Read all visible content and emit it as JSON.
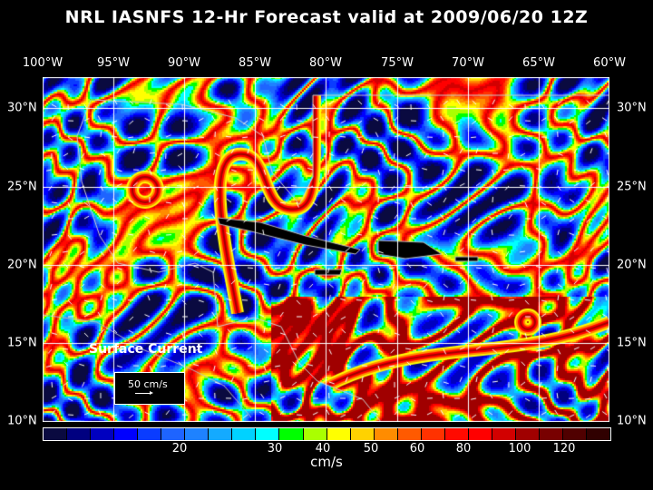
{
  "title": "NRL IASNFS  12-Hr Forecast valid at 2009/06/20 12Z",
  "lon_labels": [
    "100°W",
    "95°W",
    "90°W",
    "85°W",
    "80°W",
    "75°W",
    "70°W",
    "65°W",
    "60°W"
  ],
  "lat_labels": [
    "30°N",
    "25°N",
    "20°N",
    "15°N",
    "10°N"
  ],
  "legend": {
    "title": "Surface Current",
    "reference": "50 cm/s"
  },
  "colorbar": {
    "units": "cm/s",
    "ticks": [
      "20",
      "30",
      "40",
      "50",
      "60",
      "80",
      "100",
      "120"
    ],
    "colors": [
      "#0a0a40",
      "#000080",
      "#0000c0",
      "#0000ff",
      "#0a3cff",
      "#1e64ff",
      "#1e82ff",
      "#14aaff",
      "#00d2ff",
      "#00ffff",
      "#00ff00",
      "#aaff00",
      "#ffff00",
      "#ffd200",
      "#ff8c00",
      "#ff5a00",
      "#ff3200",
      "#ff0a00",
      "#ff0000",
      "#d20000",
      "#a00000",
      "#780000",
      "#500000",
      "#300000"
    ]
  }
}
